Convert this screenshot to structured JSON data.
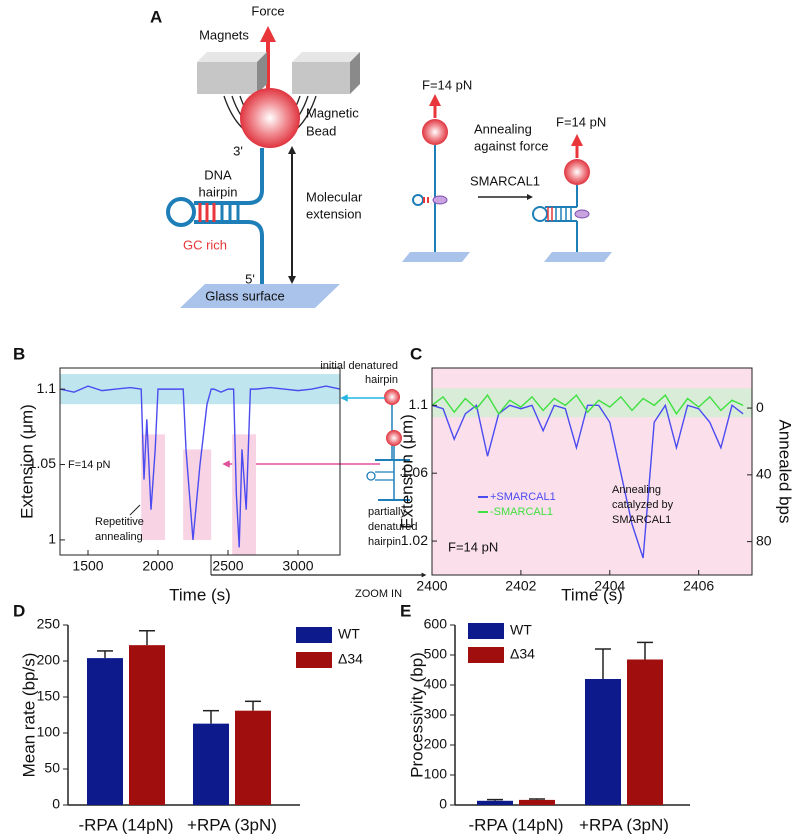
{
  "panel_a": {
    "label": "A",
    "force": "Force",
    "magnets": "Magnets",
    "bead": [
      "Magnetic",
      "Bead"
    ],
    "three_prime": "3'",
    "hairpin": [
      "DNA",
      "hairpin"
    ],
    "extension": [
      "Molecular",
      "extension"
    ],
    "gc": "GC rich",
    "five_prime": "5'",
    "glass": "Glass surface",
    "force_right1": "F=14 pN",
    "annealing": [
      "Annealing",
      "against force"
    ],
    "enzyme": "SMARCAL1",
    "force_right2": "F=14 pN"
  },
  "chart_data": [
    {
      "type": "line",
      "label": "B",
      "xlabel": "Time (s)",
      "ylabel": "Extension (μm)",
      "xlim": [
        1300,
        3300
      ],
      "xticks": [
        1500,
        2000,
        2500,
        3000
      ],
      "ylim": [
        0.99,
        1.114
      ],
      "yticks": [
        1,
        1.05,
        1.1
      ],
      "band": [
        1.09,
        1.11
      ],
      "band_color": "#bfe6ee",
      "shaded_regions": [
        {
          "x": [
            1880,
            2050
          ],
          "y": [
            1.0,
            1.07
          ]
        },
        {
          "x": [
            2180,
            2380
          ],
          "y": [
            1.0,
            1.06
          ]
        },
        {
          "x": [
            2530,
            2700
          ],
          "y": [
            0.99,
            1.07
          ]
        }
      ],
      "shade_color": "#f7d3e4",
      "annotations": [
        "F=14 pN",
        "Repetitive",
        "annealing",
        "initial denatured",
        "hairpin",
        "partially",
        "denatured",
        "hairpin",
        "ZOOM IN"
      ],
      "series": [
        {
          "color": "#4b4bf0",
          "x": [
            1300,
            1400,
            1500,
            1600,
            1700,
            1800,
            1880,
            1900,
            1920,
            1950,
            1980,
            2000,
            2050,
            2100,
            2180,
            2200,
            2250,
            2300,
            2350,
            2380,
            2400,
            2450,
            2500,
            2540,
            2560,
            2580,
            2600,
            2630,
            2660,
            2700,
            2800,
            2900,
            3000,
            3100,
            3200,
            3300
          ],
          "values": [
            1.1,
            1.098,
            1.102,
            1.099,
            1.1,
            1.101,
            1.1,
            1.04,
            1.08,
            1.02,
            1.06,
            1.1,
            1.1,
            1.1,
            1.1,
            1.06,
            1.0,
            1.05,
            1.09,
            1.1,
            1.1,
            1.098,
            1.1,
            1.1,
            1.03,
            0.995,
            1.06,
            1.02,
            1.1,
            1.1,
            1.101,
            1.1,
            1.099,
            1.1,
            1.102,
            1.1
          ]
        }
      ]
    },
    {
      "type": "line",
      "label": "C",
      "xlabel": "Time (s)",
      "ylabel": "Extension (μm)",
      "y2label": "Annealed bps",
      "xlim": [
        2400,
        2407.2
      ],
      "xticks": [
        2400,
        2402,
        2404,
        2406
      ],
      "ylim": [
        1.0,
        1.122
      ],
      "yticks": [
        1.02,
        1.06,
        1.1
      ],
      "y2lim": [
        100,
        -24
      ],
      "y2ticks": [
        0,
        40,
        80
      ],
      "band": [
        1.093,
        1.11
      ],
      "band_color": "#d8ecd8",
      "background": "#fbe0ec",
      "annotations": [
        "Annealing",
        "catalyzed by",
        "SMARCAL1",
        "F=14 pN"
      ],
      "series": [
        {
          "name": "+SMARCAL1",
          "color": "#4b4bf0",
          "x": [
            2400,
            2400.25,
            2400.5,
            2400.75,
            2401,
            2401.25,
            2401.5,
            2401.75,
            2402,
            2402.25,
            2402.5,
            2402.75,
            2403,
            2403.25,
            2403.5,
            2403.75,
            2404,
            2404.25,
            2404.5,
            2404.75,
            2405,
            2405.25,
            2405.5,
            2405.75,
            2406,
            2406.25,
            2406.5,
            2406.75,
            2407
          ],
          "values": [
            1.1,
            1.098,
            1.08,
            1.095,
            1.1,
            1.07,
            1.095,
            1.1,
            1.098,
            1.1,
            1.085,
            1.1,
            1.098,
            1.075,
            1.1,
            1.1,
            1.09,
            1.06,
            1.03,
            1.01,
            1.09,
            1.1,
            1.075,
            1.1,
            1.098,
            1.09,
            1.075,
            1.1,
            1.095
          ]
        },
        {
          "name": "-SMARCAL1",
          "color": "#3fe03f",
          "x": [
            2400,
            2400.25,
            2400.5,
            2400.75,
            2401,
            2401.25,
            2401.5,
            2401.75,
            2402,
            2402.25,
            2402.5,
            2402.75,
            2403,
            2403.25,
            2403.5,
            2403.75,
            2404,
            2404.25,
            2404.5,
            2404.75,
            2405,
            2405.25,
            2405.5,
            2405.75,
            2406,
            2406.25,
            2406.5,
            2406.75,
            2407
          ],
          "values": [
            1.1,
            1.105,
            1.096,
            1.104,
            1.098,
            1.106,
            1.095,
            1.103,
            1.099,
            1.105,
            1.097,
            1.104,
            1.1,
            1.106,
            1.096,
            1.103,
            1.099,
            1.105,
            1.097,
            1.104,
            1.1,
            1.106,
            1.095,
            1.104,
            1.099,
            1.105,
            1.097,
            1.103,
            1.1
          ]
        }
      ]
    },
    {
      "type": "bar",
      "label": "D",
      "ylabel": "Mean rate (bp/s)",
      "categories": [
        "-RPA (14pN)",
        "+RPA (3pN)"
      ],
      "ylim": [
        0,
        250
      ],
      "yticks": [
        0,
        50,
        100,
        150,
        200,
        250
      ],
      "series": [
        {
          "name": "WT",
          "color": "#0d1a8c",
          "values": [
            204,
            113
          ],
          "errors": [
            10,
            18
          ]
        },
        {
          "name": "Δ34",
          "color": "#a00e0e",
          "values": [
            222,
            131
          ],
          "errors": [
            20,
            13
          ]
        }
      ]
    },
    {
      "type": "bar",
      "label": "E",
      "ylabel": "Processivity (bp)",
      "categories": [
        "-RPA (14pN)",
        "+RPA (3pN)"
      ],
      "ylim": [
        0,
        600
      ],
      "yticks": [
        0,
        100,
        200,
        300,
        400,
        500,
        600
      ],
      "series": [
        {
          "name": "WT",
          "color": "#0d1a8c",
          "values": [
            14,
            420
          ],
          "errors": [
            4,
            100
          ]
        },
        {
          "name": "Δ34",
          "color": "#a00e0e",
          "values": [
            17,
            485
          ],
          "errors": [
            3,
            57
          ]
        }
      ]
    }
  ]
}
